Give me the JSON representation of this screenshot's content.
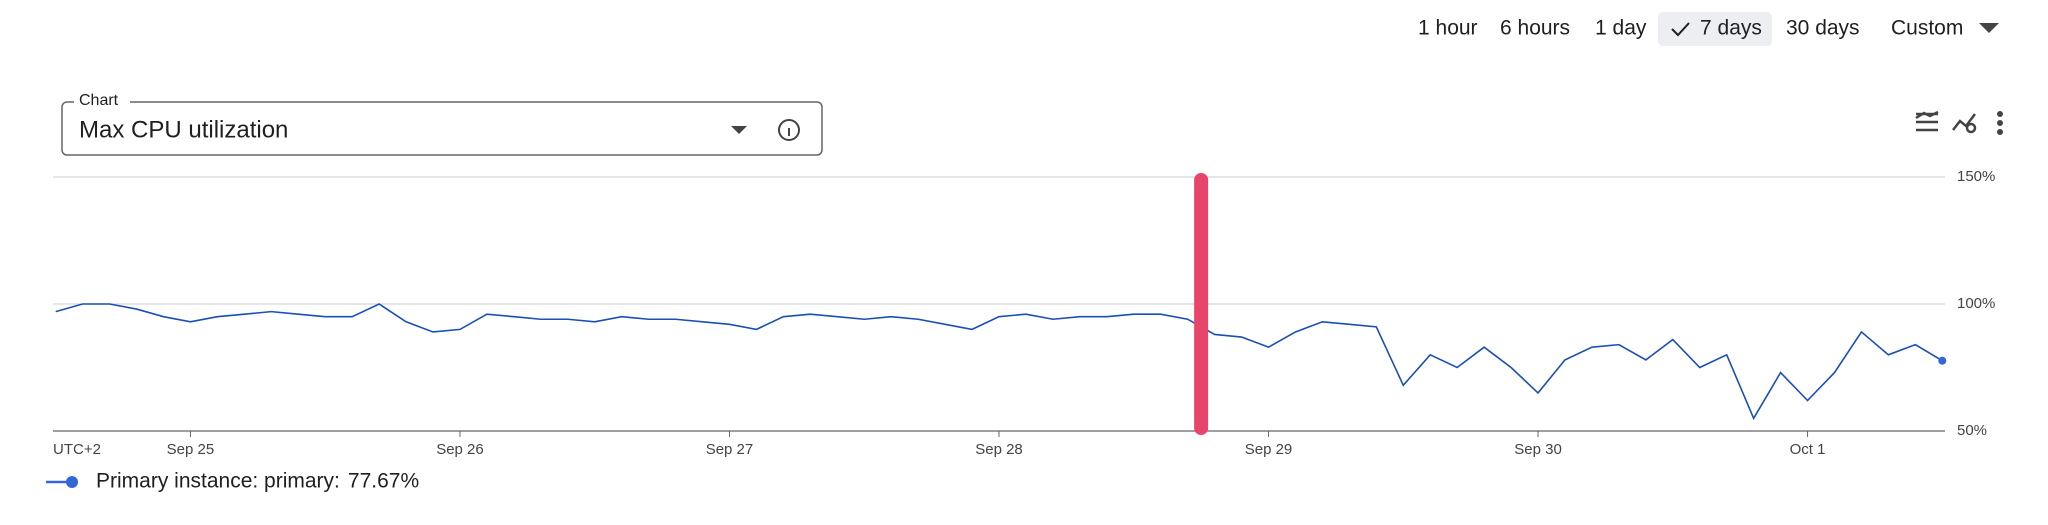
{
  "toolbar": {
    "ranges": [
      "1 hour",
      "6 hours",
      "1 day",
      "7 days",
      "30 days",
      "Custom"
    ],
    "selected": 3
  },
  "selector": {
    "label": "Chart",
    "value": "Max CPU utilization"
  },
  "chart_data": {
    "type": "line",
    "timezone_label": "UTC+2",
    "x": [
      24.5,
      24.6,
      24.7,
      24.8,
      24.9,
      25.0,
      25.1,
      25.2,
      25.3,
      25.4,
      25.5,
      25.6,
      25.7,
      25.8,
      25.9,
      26.0,
      26.1,
      26.2,
      26.3,
      26.4,
      26.5,
      26.6,
      26.7,
      26.8,
      26.9,
      27.0,
      27.1,
      27.2,
      27.3,
      27.4,
      27.5,
      27.6,
      27.7,
      27.8,
      27.9,
      28.0,
      28.1,
      28.2,
      28.3,
      28.4,
      28.5,
      28.6,
      28.7,
      28.8,
      28.9,
      29.0,
      29.1,
      29.2,
      29.3,
      29.4,
      29.5,
      29.6,
      29.7,
      29.8,
      29.9,
      30.0,
      30.1,
      30.2,
      30.3,
      30.4,
      30.5,
      30.6,
      30.7,
      30.8,
      30.9,
      31.0,
      31.1,
      31.2,
      31.3,
      31.4,
      31.5
    ],
    "series": [
      {
        "name": "Primary instance: primary:",
        "color": "#1a4fb5",
        "values": [
          97,
          100,
          100,
          98,
          95,
          93,
          95,
          96,
          97,
          96,
          95,
          95,
          100,
          93,
          89,
          90,
          96,
          95,
          94,
          94,
          93,
          95,
          94,
          94,
          93,
          92,
          90,
          95,
          96,
          95,
          94,
          95,
          94,
          92,
          90,
          95,
          96,
          94,
          95,
          95,
          96,
          96,
          94,
          88,
          87,
          83,
          89,
          93,
          92,
          91,
          68,
          80,
          75,
          83,
          75,
          65,
          78,
          83,
          84,
          78,
          86,
          75,
          80,
          55,
          73,
          62,
          73,
          89,
          80,
          84,
          77.67
        ],
        "last_value_label": "77.67%"
      }
    ],
    "xlim": [
      24.49,
      31.51
    ],
    "xticks": [
      {
        "value": 25,
        "label": "Sep 25"
      },
      {
        "value": 26,
        "label": "Sep 26"
      },
      {
        "value": 27,
        "label": "Sep 27"
      },
      {
        "value": 28,
        "label": "Sep 28"
      },
      {
        "value": 29,
        "label": "Sep 29"
      },
      {
        "value": 30,
        "label": "Sep 30"
      },
      {
        "value": 31,
        "label": "Oct 1"
      }
    ],
    "ylim": [
      50,
      150
    ],
    "yticks": [
      {
        "value": 50,
        "label": "50%"
      },
      {
        "value": 100,
        "label": "100%"
      },
      {
        "value": 150,
        "label": "150%"
      }
    ],
    "grid": true,
    "marker_x": 28.75,
    "marker_color": "#e8456b"
  }
}
